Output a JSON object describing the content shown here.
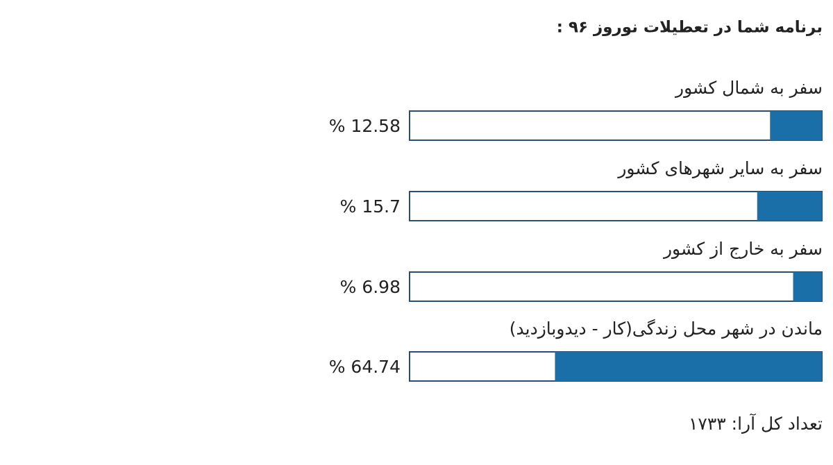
{
  "chart_data": {
    "type": "bar",
    "title": "برنامه شما در تعطیلات نوروز ۹۶ :",
    "categories": [
      "سفر به شمال کشور",
      "سفر به سایر شهرهای کشور",
      "سفر به خارج از کشور",
      "ماندن در شهر محل زندگی(کار - دیدوبازدید)"
    ],
    "values": [
      12.58,
      15.7,
      6.98,
      64.74
    ],
    "value_labels": [
      "% 12.58",
      "% 15.7",
      "% 6.98",
      "% 64.74"
    ],
    "color": "#1a6fa8",
    "xlim": [
      0,
      100
    ],
    "total_votes": "تعداد کل آرا: ۱۷۳۳"
  }
}
